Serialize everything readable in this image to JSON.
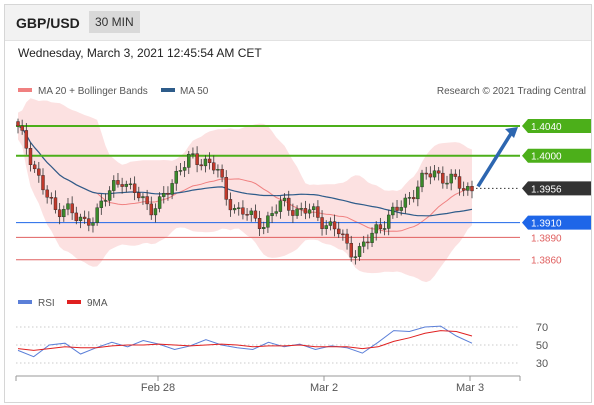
{
  "header": {
    "pair": "GBP/USD",
    "timeframe": "30 MIN"
  },
  "datetime": "Wednesday, March 3, 2021 12:45:54 AM CET",
  "legend": {
    "items": [
      {
        "label": "MA 20 + Bollinger Bands",
        "color": "#f08080"
      },
      {
        "label": "MA 50",
        "color": "#2e5c8a"
      }
    ],
    "credit": "Research © 2021 Trading Central"
  },
  "rsi_legend": {
    "items": [
      {
        "label": "RSI",
        "color": "#5b7fd8"
      },
      {
        "label": "9MA",
        "color": "#e02020"
      }
    ]
  },
  "colors": {
    "resistance": "#4caf1a",
    "pivot": "#1e66e8",
    "support": "#e06060",
    "last": "#333333",
    "candle_up": "#3a8a2a",
    "candle_down": "#c0392b",
    "band": "#fbd9d9",
    "arrow": "#2d66b0"
  },
  "chart_data": [
    {
      "type": "candlestick",
      "title": "GBP/USD 30 MIN",
      "ylim": [
        1.383,
        1.4075
      ],
      "x_ticks": [
        "Feb 28",
        "Mar 2",
        "Mar 3"
      ],
      "price_levels": [
        {
          "label": "1.4040",
          "value": 1.404,
          "kind": "resistance"
        },
        {
          "label": "1.4000",
          "value": 1.4,
          "kind": "resistance"
        },
        {
          "label": "1.3956",
          "value": 1.3956,
          "kind": "last"
        },
        {
          "label": "1.3910",
          "value": 1.391,
          "kind": "pivot"
        },
        {
          "label": "1.3890",
          "value": 1.389,
          "kind": "support"
        },
        {
          "label": "1.3860",
          "value": 1.386,
          "kind": "support"
        }
      ],
      "close_path": [
        1.4035,
        1.401,
        1.3975,
        1.3945,
        1.3925,
        1.3935,
        1.3915,
        1.391,
        1.392,
        1.3935,
        1.396,
        1.397,
        1.395,
        1.3945,
        1.393,
        1.3935,
        1.3955,
        1.3985,
        1.3995,
        1.399,
        1.3995,
        1.3985,
        1.394,
        1.393,
        1.3925,
        1.391,
        1.391,
        1.3925,
        1.3935,
        1.393,
        1.3925,
        1.3925,
        1.3915,
        1.3905,
        1.3895,
        1.3875,
        1.387,
        1.3885,
        1.3905,
        1.3915,
        1.3925,
        1.394,
        1.3955,
        1.397,
        1.398,
        1.397,
        1.3965,
        1.3958,
        1.3956
      ],
      "projection": {
        "from": 1.3956,
        "to": 1.404
      }
    },
    {
      "type": "line",
      "title": "RSI",
      "ylim": [
        20,
        80
      ],
      "y_ticks": [
        "70",
        "50",
        "30"
      ],
      "series": [
        {
          "name": "RSI",
          "values": [
            44,
            37,
            50,
            52,
            40,
            47,
            53,
            48,
            55,
            51,
            45,
            49,
            56,
            50,
            47,
            45,
            53,
            48,
            51,
            45,
            49,
            47,
            41,
            53,
            66,
            65,
            70,
            71,
            60,
            52
          ]
        },
        {
          "name": "9MA",
          "values": [
            46,
            44,
            46,
            48,
            47,
            47,
            49,
            50,
            50,
            51,
            50,
            49,
            50,
            51,
            50,
            48,
            49,
            49,
            50,
            48,
            48,
            48,
            46,
            48,
            54,
            58,
            63,
            66,
            65,
            60
          ]
        }
      ]
    }
  ]
}
